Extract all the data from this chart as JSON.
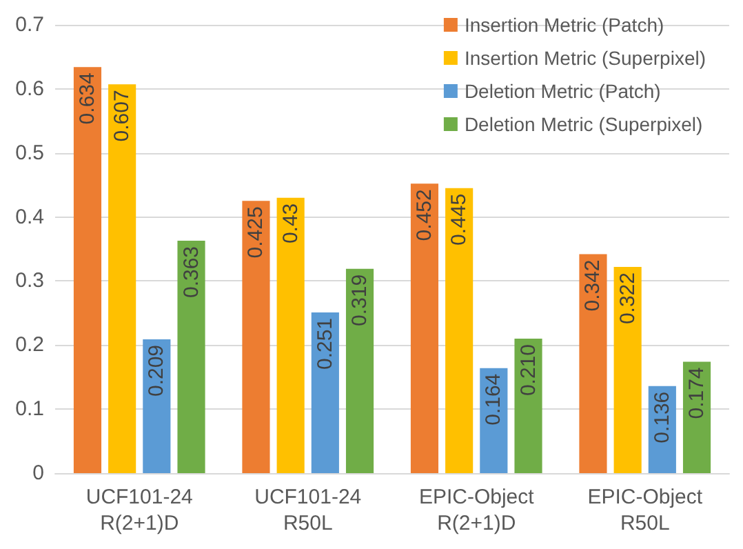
{
  "chart_data": {
    "type": "bar",
    "categories": [
      "UCF101-24\nR(2+1)D",
      "UCF101-24\nR50L",
      "EPIC-Object\nR(2+1)D",
      "EPIC-Object\nR50L"
    ],
    "series": [
      {
        "name": "Insertion Metric (Patch)",
        "color": "#ed7d31",
        "values": [
          0.634,
          0.425,
          0.452,
          0.342
        ],
        "value_labels": [
          "0.634",
          "0.425",
          "0.452",
          "0.342"
        ]
      },
      {
        "name": "Insertion Metric (Superpixel)",
        "color": "#ffc000",
        "values": [
          0.607,
          0.43,
          0.445,
          0.322
        ],
        "value_labels": [
          "0.607",
          "0.43",
          "0.445",
          "0.322"
        ]
      },
      {
        "name": "Deletion Metric (Patch)",
        "color": "#5b9bd5",
        "values": [
          0.209,
          0.251,
          0.164,
          0.136
        ],
        "value_labels": [
          "0.209",
          "0.251",
          "0.164",
          "0.136"
        ]
      },
      {
        "name": "Deletion Metric (Superpixel)",
        "color": "#70ad47",
        "values": [
          0.363,
          0.319,
          0.21,
          0.174
        ],
        "value_labels": [
          "0.363",
          "0.319",
          "0.210",
          "0.174"
        ]
      }
    ],
    "ylim": [
      0,
      0.7
    ],
    "yticks": [
      0,
      0.1,
      0.2,
      0.3,
      0.4,
      0.5,
      0.6,
      0.7
    ],
    "grid": "y",
    "legend": "top right"
  }
}
